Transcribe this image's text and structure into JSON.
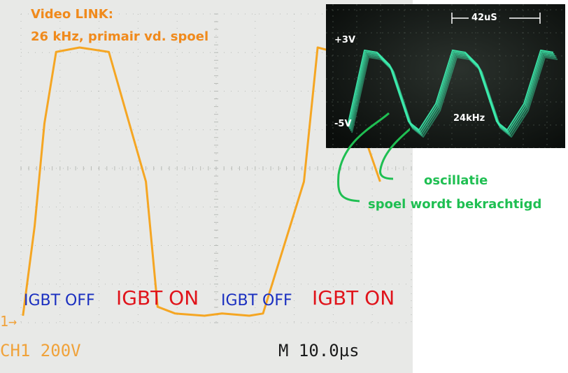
{
  "scope": {
    "title_line1": "Video LINK:",
    "title_line2": "26 kHz, primair vd. spoel",
    "channel_label": "CH1  200V",
    "timebase_label": "M 10.0µs",
    "ground_marker": "1→",
    "state_labels": {
      "off_1": "IGBT OFF",
      "on_1": "IGBT ON",
      "off_2": "IGBT OFF",
      "on_2": "IGBT ON"
    },
    "colors": {
      "trace": "#f5a623",
      "off_text": "#1a2fc0",
      "on_text": "#e0141b",
      "title": "#f08a1c"
    }
  },
  "inset": {
    "period_label": "42uS",
    "v_top_label": "+3V",
    "v_bottom_label": "-5V",
    "freq_label": "24kHz",
    "trace_color": "#3df0b0"
  },
  "annotations": {
    "oscillation": "oscillatie",
    "coil_energized": "spoel wordt bekrachtigd",
    "color": "#1fbf52"
  },
  "chart_data": [
    {
      "type": "line",
      "title": "",
      "xlabel": "",
      "ylabel": "",
      "x_unit": "µs",
      "x_range_divisions": 10,
      "timebase_per_div": "10.0µs",
      "volts_per_div": "200V",
      "series": [
        {
          "x_div": [
            0.05,
            0.35,
            0.6,
            0.9,
            1.5,
            2.25,
            3.2,
            3.5,
            3.95,
            4.7,
            5.15,
            5.85,
            6.2,
            7.25,
            7.6,
            8.05,
            9.2
          ],
          "y_div": [
            0.0,
            2.0,
            4.3,
            5.9,
            6.0,
            5.9,
            3.0,
            0.2,
            0.05,
            0.0,
            0.05,
            0.0,
            0.05,
            3.0,
            6.0,
            5.9,
            3.0
          ]
        }
      ]
    },
    {
      "type": "line",
      "title": "",
      "xlabel": "",
      "ylabel": "",
      "period_us": 42,
      "frequency_khz": 24,
      "y_labels": [
        "+3V",
        "-5V"
      ],
      "series": [
        {
          "x_us": [
            -8,
            0,
            6,
            12,
            21,
            26,
            34,
            42,
            48,
            54,
            63,
            68,
            76,
            84,
            90
          ],
          "y_v": [
            -4.6,
            2.6,
            2.4,
            1.2,
            -4.2,
            -5.0,
            -2.5,
            2.6,
            2.4,
            1.2,
            -4.2,
            -5.0,
            -2.5,
            2.6,
            2.4
          ]
        }
      ]
    }
  ]
}
